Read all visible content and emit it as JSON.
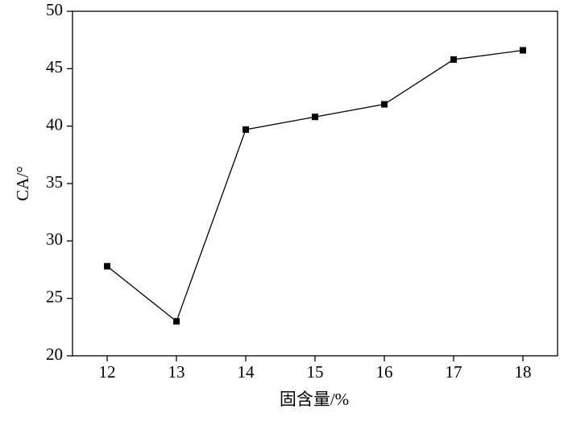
{
  "chart_data": {
    "type": "line",
    "x_label": "固含量/%",
    "y_label": "CA/°",
    "x": [
      12,
      13,
      14,
      15,
      16,
      17,
      18
    ],
    "series": [
      {
        "color": "#000000",
        "values": [
          27.8,
          23.0,
          39.7,
          40.8,
          41.9,
          45.8,
          46.6
        ]
      }
    ],
    "xlim": [
      11.5,
      18.5
    ],
    "xticks": [
      12,
      13,
      14,
      15,
      16,
      17,
      18
    ],
    "ylim": [
      20,
      50
    ],
    "yticks": [
      20,
      25,
      30,
      35,
      40,
      45,
      50
    ]
  }
}
